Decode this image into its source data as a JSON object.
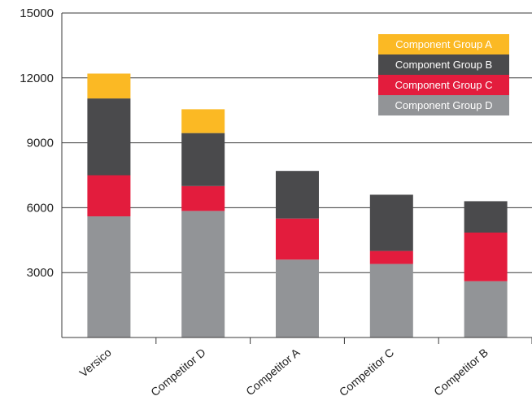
{
  "chart_data": {
    "type": "bar",
    "stacked": true,
    "title": "",
    "xlabel": "",
    "ylabel": "",
    "ylim": [
      0,
      15000
    ],
    "yticks": [
      "15000",
      "12000",
      "9000",
      "6000",
      "3000"
    ],
    "y_tick_values": [
      15000,
      12000,
      9000,
      6000,
      3000
    ],
    "grid": true,
    "legend_position": "top-right",
    "categories": [
      "Versico",
      "Competitor D",
      "Competitor A",
      "Competitor C",
      "Competitor B"
    ],
    "highlight_category": "Versico",
    "highlight_color": "#f7b92b",
    "series": [
      {
        "name": "Component Group D",
        "color": "#929497",
        "values": [
          5600,
          5850,
          3600,
          3400,
          2600
        ]
      },
      {
        "name": "Component Group C",
        "color": "#e31c3d",
        "values": [
          1900,
          1150,
          1900,
          600,
          2250
        ]
      },
      {
        "name": "Component Group B",
        "color": "#4a4a4c",
        "values": [
          3550,
          2450,
          2200,
          2600,
          1450
        ]
      },
      {
        "name": "Component Group A",
        "color": "#fbb924",
        "values": [
          1150,
          1100,
          0,
          0,
          0
        ]
      }
    ],
    "legend_order": [
      "Component Group A",
      "Component Group B",
      "Component Group C",
      "Component Group D"
    ]
  }
}
